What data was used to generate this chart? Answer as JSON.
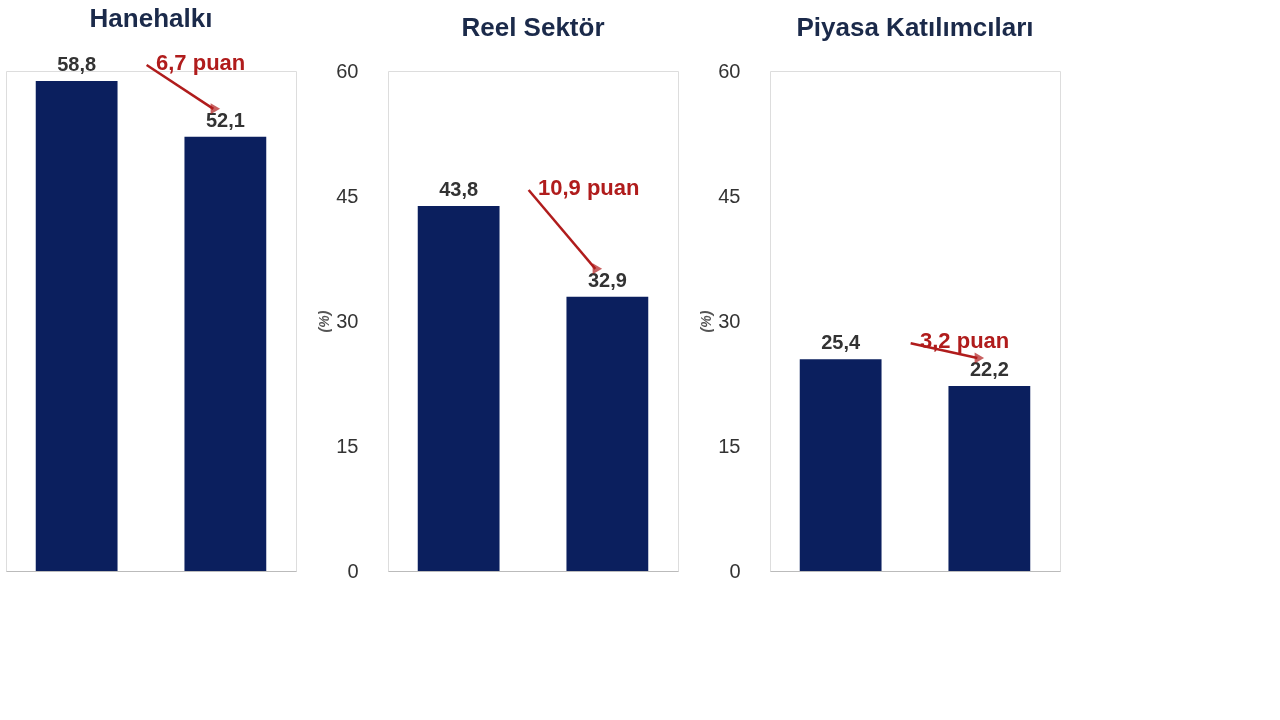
{
  "chart_data": [
    {
      "type": "bar",
      "title": "Hanehalkı",
      "categories": [
        null,
        null
      ],
      "values": [
        58.8,
        52.1
      ],
      "color": "#0b1f5e",
      "value_labels": [
        "58,8",
        "52,1"
      ],
      "annotations": [
        "6,7 puan"
      ],
      "ylim": [
        0,
        60
      ],
      "yticks": [
        0,
        15,
        30,
        45,
        60
      ],
      "tick_labels": false,
      "grid": false
    },
    {
      "type": "bar",
      "title": "Reel Sektör",
      "categories": [
        null,
        null
      ],
      "values": [
        43.8,
        32.9
      ],
      "color": "#0b1f5e",
      "value_labels": [
        "43,8",
        "32,9"
      ],
      "annotations": [
        "10,9 puan"
      ],
      "ylabel": "(%)",
      "ylim": [
        0,
        60
      ],
      "yticks": [
        0,
        15,
        30,
        45,
        60
      ],
      "grid": false
    },
    {
      "type": "bar",
      "title": "Piyasa Katılımcıları",
      "categories": [
        null,
        null
      ],
      "values": [
        25.4,
        22.2
      ],
      "color": "#0b1f5e",
      "value_labels": [
        "25,4",
        "22,2"
      ],
      "annotations": [
        "3,2 puan"
      ],
      "ylabel": "(%)",
      "ylim": [
        0,
        60
      ],
      "yticks": [
        0,
        15,
        30,
        45,
        60
      ],
      "grid": false
    }
  ]
}
